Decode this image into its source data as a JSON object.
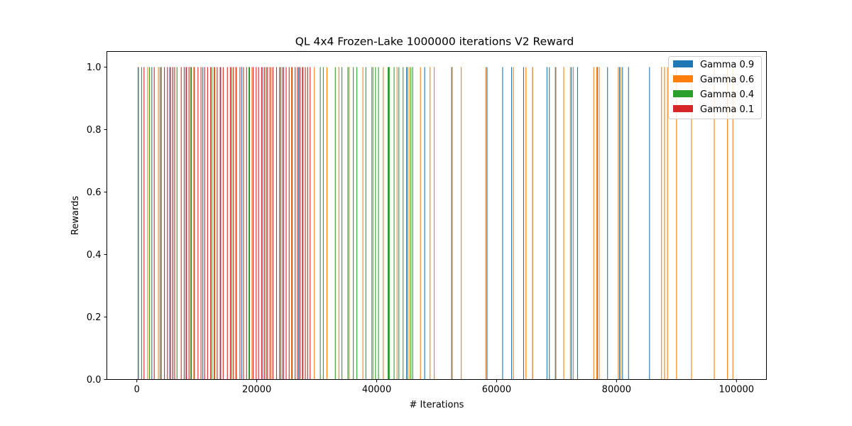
{
  "chart_data": {
    "type": "bar",
    "title": "QL 4x4 Frozen-Lake 1000000 iterations V2 Reward",
    "xlabel": "# Iterations",
    "ylabel": "Rewards",
    "xlim": [
      -5000,
      105000
    ],
    "ylim": [
      0,
      1.05
    ],
    "xticks": [
      0,
      20000,
      40000,
      60000,
      80000,
      100000
    ],
    "xtick_labels": [
      "0",
      "20000",
      "40000",
      "60000",
      "80000",
      "100000"
    ],
    "yticks": [
      0.0,
      0.2,
      0.4,
      0.6,
      0.8,
      1.0
    ],
    "ytick_labels": [
      "0.0",
      "0.2",
      "0.4",
      "0.6",
      "0.8",
      "1.0"
    ],
    "grid": false,
    "legend_position": "top-right",
    "series": [
      {
        "name": "Gamma 0.9",
        "color": "#1f77b4",
        "x": [
          200,
          2500,
          5500,
          8200,
          11000,
          14000,
          17500,
          21000,
          24500,
          27000,
          42000,
          45000,
          48000,
          52500,
          58400,
          61000,
          62500,
          64500,
          66000,
          68400,
          68800,
          69800,
          72500,
          73500,
          76800,
          78500,
          80500,
          81000,
          82000,
          85500
        ],
        "values": [
          1,
          1,
          1,
          1,
          1,
          1,
          1,
          1,
          1,
          1,
          1,
          1,
          1,
          1,
          1,
          1,
          1,
          1,
          1,
          1,
          1,
          1,
          1,
          1,
          1,
          1,
          1,
          1,
          1,
          1
        ]
      },
      {
        "name": "Gamma 0.6",
        "color": "#ff7f0e",
        "x": [
          300,
          1800,
          3600,
          6000,
          9500,
          13000,
          16500,
          19200,
          22400,
          25800,
          29600,
          31700,
          33700,
          35400,
          37700,
          39400,
          41100,
          43400,
          45400,
          47300,
          48900,
          49600,
          52600,
          54100,
          58200,
          62800,
          64900,
          66000,
          69900,
          71200,
          72300,
          72800,
          76200,
          76700,
          77100,
          80300,
          80700,
          87500,
          88000,
          88500,
          90000,
          92500,
          96300,
          98500,
          99400
        ],
        "values": [
          1,
          1,
          1,
          1,
          1,
          1,
          1,
          1,
          1,
          1,
          1,
          1,
          1,
          1,
          1,
          1,
          1,
          1,
          1,
          1,
          1,
          1,
          1,
          1,
          1,
          1,
          1,
          1,
          1,
          1,
          1,
          1,
          1,
          1,
          1,
          1,
          1,
          1,
          1,
          1,
          1,
          1,
          1,
          1,
          1
        ]
      },
      {
        "name": "Gamma 0.4",
        "color": "#2ca02c",
        "x": [
          800,
          2100,
          4100,
          6700,
          9000,
          12500,
          15800,
          18700,
          21600,
          24000,
          27600,
          30600,
          31100,
          33100,
          34200,
          35200,
          36100,
          36700,
          38200,
          39200,
          39800,
          40300,
          41900,
          42100,
          42900,
          43700,
          44400,
          45100,
          45700,
          46000
        ],
        "values": [
          1,
          1,
          1,
          1,
          1,
          1,
          1,
          1,
          1,
          1,
          1,
          1,
          1,
          1,
          1,
          1,
          1,
          1,
          1,
          1,
          1,
          1,
          1,
          1,
          1,
          1,
          1,
          1,
          1,
          1
        ]
      },
      {
        "name": "Gamma 0.1",
        "color": "#d62728",
        "x": [
          1200,
          2900,
          3900,
          4600,
          5100,
          5600,
          6000,
          6300,
          7400,
          7900,
          8300,
          8700,
          9100,
          9600,
          10200,
          10700,
          11300,
          11800,
          12300,
          12900,
          13400,
          13900,
          14400,
          15100,
          15600,
          16100,
          16600,
          17200,
          17800,
          18300,
          18800,
          19400,
          19900,
          20300,
          20800,
          21300,
          21800,
          22200,
          22700,
          23300,
          23800,
          24300,
          24900,
          25400,
          25900,
          26400,
          26800,
          27200,
          27700,
          28100,
          28500,
          28900
        ],
        "values": [
          1,
          1,
          1,
          1,
          1,
          1,
          1,
          1,
          1,
          1,
          1,
          1,
          1,
          1,
          1,
          1,
          1,
          1,
          1,
          1,
          1,
          1,
          1,
          1,
          1,
          1,
          1,
          1,
          1,
          1,
          1,
          1,
          1,
          1,
          1,
          1,
          1,
          1,
          1,
          1,
          1,
          1,
          1,
          1,
          1,
          1,
          1,
          1,
          1,
          1,
          1,
          1
        ]
      }
    ]
  }
}
